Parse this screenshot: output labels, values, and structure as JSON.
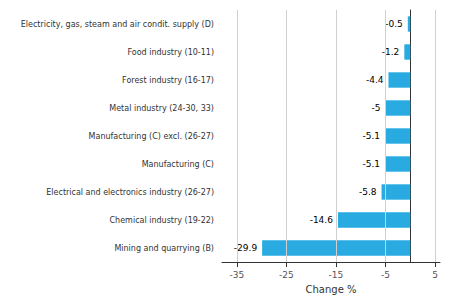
{
  "chart_data": {
    "type": "bar",
    "orientation": "horizontal",
    "categories": [
      "Mining and quarrying (B)",
      "Chemical industry (19-22)",
      "Electrical and electronics industry (26-27)",
      "Manufacturing (C)",
      "Manufacturing (C) excl. (26-27)",
      "Metal industry (24-30, 33)",
      "Forest industry (16-17)",
      "Food industry (10-11)",
      "Electricity, gas, steam and air condit. supply (D)"
    ],
    "values": [
      -29.9,
      -14.6,
      -5.8,
      -5.1,
      -5.1,
      -5.0,
      -4.4,
      -1.2,
      -0.5
    ],
    "color": "#29ABE2",
    "xlabel": "Change %",
    "xlim": [
      -38,
      6
    ],
    "xticks": [
      -35,
      -25,
      -15,
      -5,
      5
    ],
    "grid": true,
    "data_labels": true
  }
}
